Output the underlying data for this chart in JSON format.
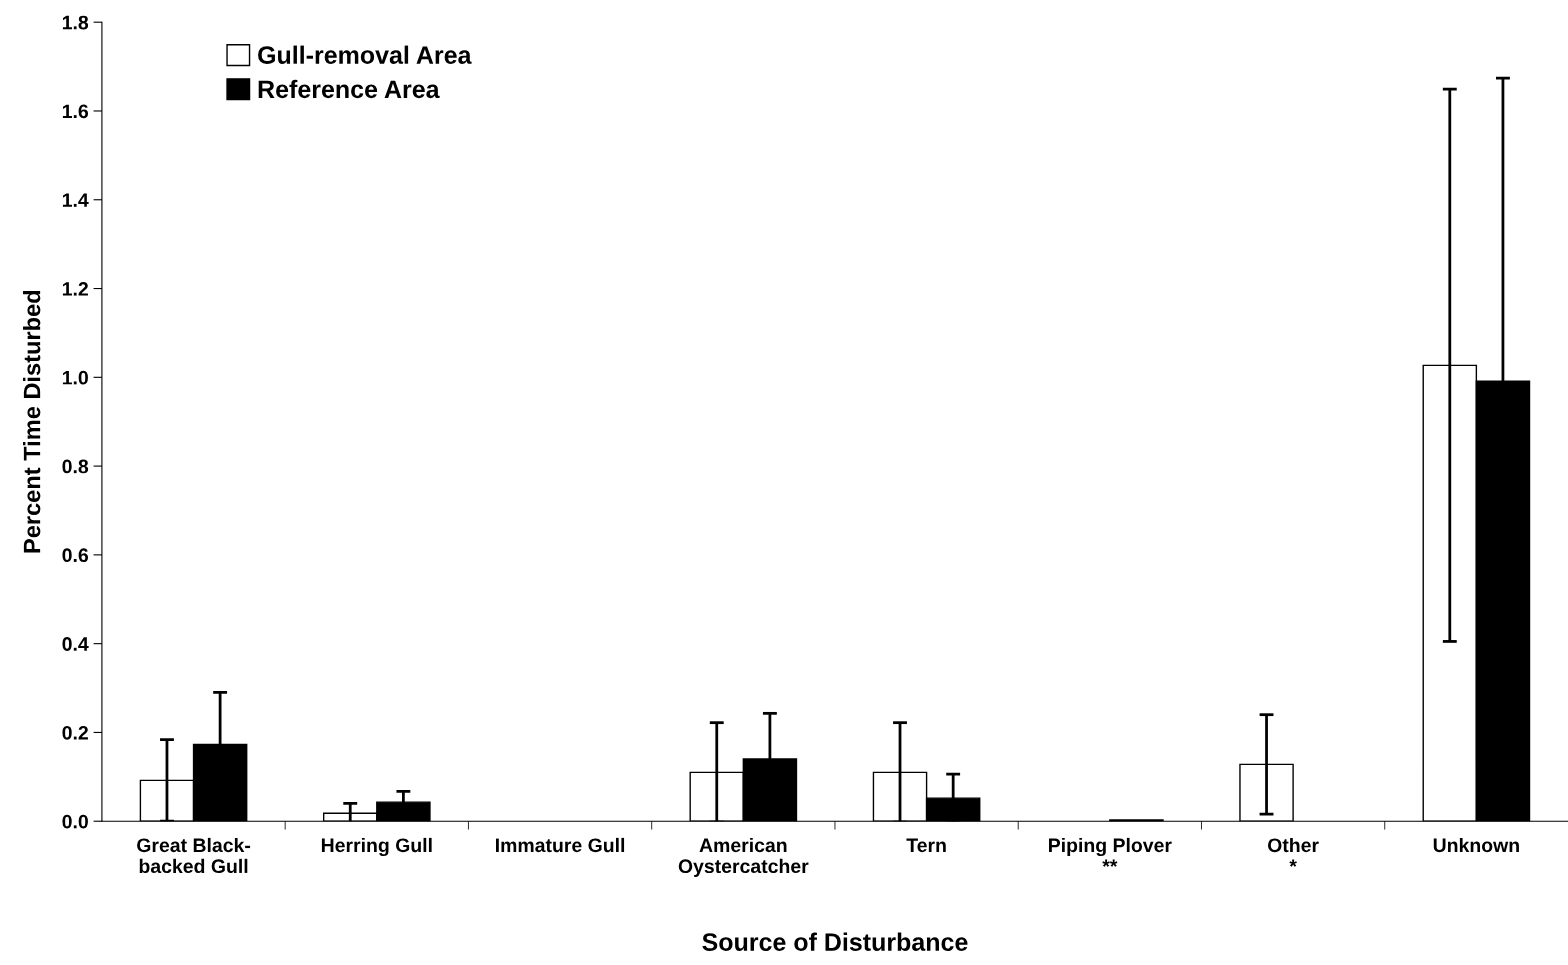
{
  "chart_data": {
    "type": "bar",
    "xlabel": "Source of Disturbance",
    "ylabel": "Percent Time Disturbed",
    "categories": [
      "Great Black-\nbacked Gull",
      "Herring Gull",
      "Immature Gull",
      "American\nOystercatcher",
      "Tern",
      "Piping Plover\n**",
      "Other\n*",
      "Unknown"
    ],
    "series": [
      {
        "name": "Gull-removal Area",
        "color": "#ffffff",
        "values": [
          0.092,
          0.018,
          0,
          0.11,
          0.11,
          0,
          0.128,
          1.027
        ],
        "errors": [
          0.092,
          0.022,
          null,
          0.112,
          0.112,
          null,
          0.112,
          0.622
        ]
      },
      {
        "name": "Reference Area",
        "color": "#000000",
        "values": [
          0.173,
          0.043,
          0,
          0.14,
          0.052,
          0.003,
          0,
          0.991
        ],
        "errors": [
          0.117,
          0.024,
          null,
          0.103,
          0.054,
          null,
          null,
          0.683
        ]
      }
    ],
    "ylim": [
      0,
      1.8
    ],
    "yticks": [
      {
        "value": 0,
        "label": "0.0"
      },
      {
        "value": 0.2,
        "label": "0.2"
      },
      {
        "value": 0.4,
        "label": "0.4"
      },
      {
        "value": 0.6,
        "label": "0.6"
      },
      {
        "value": 0.8,
        "label": "0.8"
      },
      {
        "value": 1.0,
        "label": "1.0"
      },
      {
        "value": 1.2,
        "label": "1.2"
      },
      {
        "value": 1.4,
        "label": "1.4"
      },
      {
        "value": 1.6,
        "label": "1.6"
      },
      {
        "value": 1.8,
        "label": "1.8"
      }
    ],
    "grid": false,
    "legend": "top left"
  }
}
